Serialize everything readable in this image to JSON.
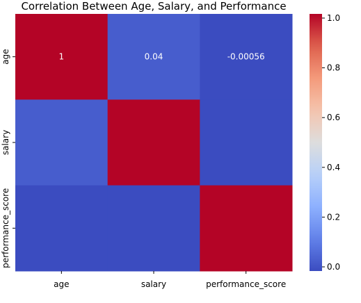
{
  "chart_data": {
    "type": "heatmap",
    "title": "Correlation Between Age, Salary, and Performance",
    "x_labels": [
      "age",
      "salary",
      "performance_score"
    ],
    "y_labels": [
      "age",
      "salary",
      "performance_score"
    ],
    "values": [
      [
        1,
        0.04,
        -0.00056
      ],
      [
        0.04,
        1,
        -0.0001
      ],
      [
        -0.00056,
        -0.0001,
        1
      ]
    ],
    "annotations": [
      [
        "1",
        "0.04",
        "-0.00056"
      ],
      [
        "",
        "",
        ""
      ],
      [
        "",
        "",
        ""
      ]
    ],
    "colormap": "coolwarm",
    "colorbar": {
      "range": [
        0.0,
        1.0
      ],
      "ticks": [
        0.0,
        0.2,
        0.4,
        0.6,
        0.8,
        1.0
      ],
      "tick_labels": [
        "0.0",
        "0.2",
        "0.4",
        "0.6",
        "0.8",
        "1.0"
      ]
    },
    "xlabel": "",
    "ylabel": ""
  }
}
